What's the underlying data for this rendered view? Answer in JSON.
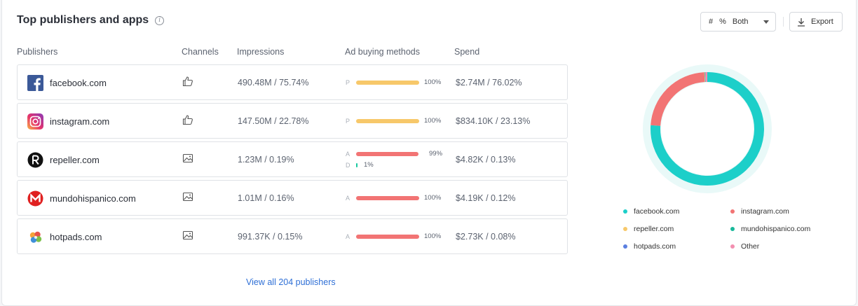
{
  "header": {
    "title": "Top publishers and apps",
    "info_icon": "info-circle-icon",
    "toggle": {
      "hash": "#",
      "percent": "%",
      "selected": "Both"
    },
    "export_label": "Export"
  },
  "columns": [
    "Publishers",
    "Channels",
    "Impressions",
    "Ad buying methods",
    "Spend"
  ],
  "publishers": [
    {
      "name": "facebook.com",
      "logo": "facebook-logo-icon",
      "channel": "thumbs-up-icon",
      "impressions": "490.48M / 75.74%",
      "methods": [
        {
          "code": "P",
          "fraction": 1.0,
          "pct": "100%",
          "color": "#f7c86a"
        }
      ],
      "spend": "$2.74M / 76.02%"
    },
    {
      "name": "instagram.com",
      "logo": "instagram-logo-icon",
      "channel": "thumbs-up-icon",
      "impressions": "147.50M / 22.78%",
      "methods": [
        {
          "code": "P",
          "fraction": 1.0,
          "pct": "100%",
          "color": "#f7c86a"
        }
      ],
      "spend": "$834.10K / 23.13%"
    },
    {
      "name": "repeller.com",
      "logo": "repeller-logo-icon",
      "channel": "image-icon",
      "impressions": "1.23M / 0.19%",
      "methods": [
        {
          "code": "A",
          "fraction": 0.99,
          "pct": "99%",
          "color": "#f27474"
        },
        {
          "code": "D",
          "fraction": 0.01,
          "pct": "1%",
          "color": "#18c9a0"
        }
      ],
      "spend": "$4.82K / 0.13%"
    },
    {
      "name": "mundohispanico.com",
      "logo": "mundohispanico-logo-icon",
      "channel": "image-icon",
      "impressions": "1.01M / 0.16%",
      "methods": [
        {
          "code": "A",
          "fraction": 1.0,
          "pct": "100%",
          "color": "#f27474"
        }
      ],
      "spend": "$4.19K / 0.12%"
    },
    {
      "name": "hotpads.com",
      "logo": "hotpads-logo-icon",
      "channel": "image-icon",
      "impressions": "991.37K / 0.15%",
      "methods": [
        {
          "code": "A",
          "fraction": 1.0,
          "pct": "100%",
          "color": "#f27474"
        }
      ],
      "spend": "$2.73K / 0.08%"
    }
  ],
  "view_all_label": "View all 204 publishers",
  "chart_data": {
    "type": "pie",
    "donut": true,
    "categories": [
      "facebook.com",
      "instagram.com",
      "repeller.com",
      "mundohispanico.com",
      "hotpads.com",
      "Other"
    ],
    "values": [
      76.02,
      23.13,
      0.13,
      0.12,
      0.08,
      0.52
    ],
    "colors": [
      "#1ccfc9",
      "#f27474",
      "#f7c86a",
      "#18b89a",
      "#5b7fe0",
      "#f38fb0"
    ],
    "legend": "bottom"
  }
}
